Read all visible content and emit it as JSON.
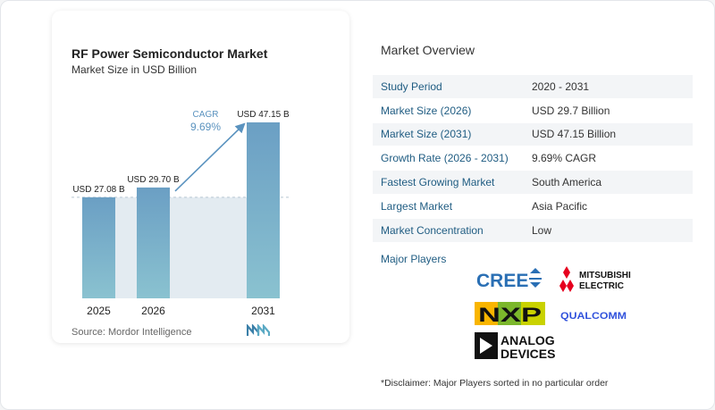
{
  "chart_data": {
    "type": "bar",
    "title": "RF Power Semiconductor Market",
    "subtitle": "Market Size in USD Billion",
    "categories": [
      "2025",
      "2026",
      "2031"
    ],
    "values": [
      27.08,
      29.7,
      47.15
    ],
    "data_labels": [
      "USD 27.08 B",
      "USD 29.70 B",
      "USD 47.15 B"
    ],
    "cagr_label": "CAGR",
    "cagr_value": "9.69%",
    "xlabel": "",
    "ylabel": "",
    "ylim": [
      0,
      47.15
    ],
    "grid": false,
    "colors": {
      "bar_top": "#6b9fc4",
      "bar_bottom": "#8ac2d0",
      "arrow": "#5b93bf",
      "cagr_text": "#5b93bf",
      "shade": "#e3ebf1"
    }
  },
  "source": "Source: Mordor Intelligence",
  "overview": {
    "title": "Market Overview",
    "rows": [
      {
        "label": "Study Period",
        "value": "2020 - 2031"
      },
      {
        "label": "Market Size (2026)",
        "value": "USD 29.7 Billion"
      },
      {
        "label": "Market Size (2031)",
        "value": "USD 47.15 Billion"
      },
      {
        "label": "Growth Rate (2026 - 2031)",
        "value": "9.69% CAGR"
      },
      {
        "label": "Fastest Growing Market",
        "value": "South America"
      },
      {
        "label": "Largest Market",
        "value": "Asia Pacific"
      },
      {
        "label": "Market Concentration",
        "value": "Low"
      }
    ]
  },
  "major_players": {
    "title": "Major Players",
    "logos": [
      {
        "name": "CREE",
        "icon": "cree-logo"
      },
      {
        "name": "MITSUBISHI ELECTRIC",
        "line1": "MITSUBISHI",
        "line2": "ELECTRIC",
        "icon": "mitsubishi-logo"
      },
      {
        "name": "NXP",
        "icon": "nxp-logo"
      },
      {
        "name": "QUALCOMM",
        "icon": "qualcomm-logo"
      },
      {
        "name": "ANALOG DEVICES",
        "line1": "ANALOG",
        "line2": "DEVICES",
        "icon": "analog-devices-logo"
      }
    ]
  },
  "disclaimer": "*Disclaimer: Major Players sorted in no particular order"
}
